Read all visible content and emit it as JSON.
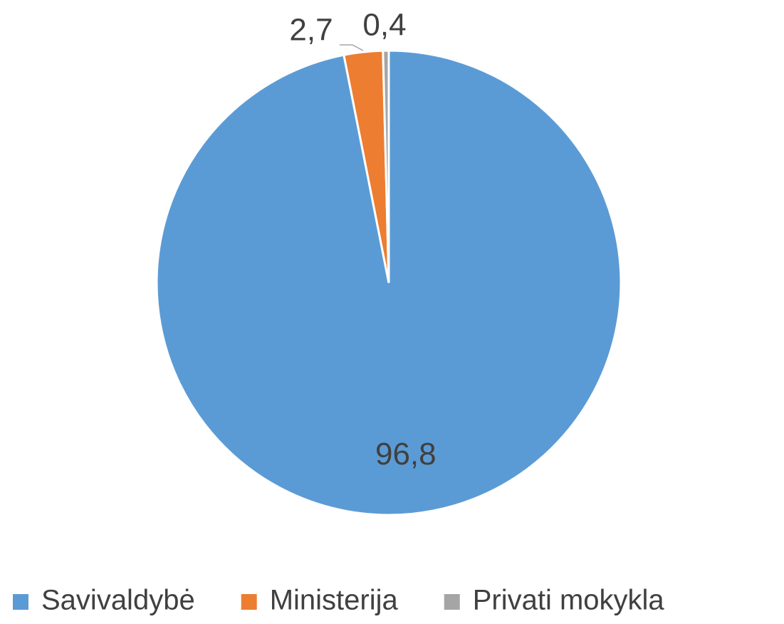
{
  "chart_data": {
    "type": "pie",
    "categories": [
      "Savivaldybė",
      "Ministerija",
      "Privati mokykla"
    ],
    "values": [
      96.8,
      2.7,
      0.4
    ],
    "value_labels": [
      "96,8",
      "2,7",
      "0,4"
    ],
    "colors": [
      "#5b9bd5",
      "#ed7d31",
      "#a5a5a5"
    ],
    "legend": "bottom"
  }
}
